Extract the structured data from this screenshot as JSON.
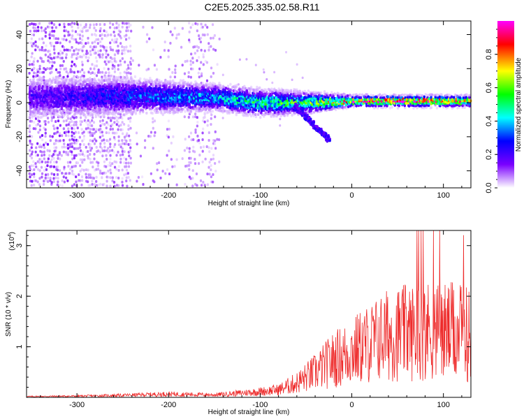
{
  "title": "C2E5.2025.335.02.58.R11",
  "chart_data": [
    {
      "type": "heatmap",
      "xlabel": "Height of straight line (km)",
      "ylabel": "Frequency (Hz)",
      "xlim": [
        -355,
        130
      ],
      "ylim": [
        -50,
        48
      ],
      "xticks": [
        -300,
        -200,
        -100,
        0,
        100
      ],
      "yticks": [
        -40,
        -20,
        0,
        20,
        40
      ],
      "colorbar": {
        "label": "Normalized spectral amplitude",
        "range": [
          0,
          1
        ],
        "ticks": [
          "0.0",
          "0.2",
          "0.4",
          "0.6",
          "0.8"
        ],
        "tick_values": [
          0,
          0.2,
          0.4,
          0.6,
          0.8
        ],
        "colors": [
          "#ffffff",
          "#7a00ff",
          "#0000ff",
          "#00ffff",
          "#00ff00",
          "#ffff00",
          "#ff0000",
          "#ff00ff"
        ]
      },
      "ridge": {
        "description_values": [
          {
            "x": -330,
            "freq_center": 3,
            "freq_halfwidth": 8,
            "amplitude": 0.2
          },
          {
            "x": -250,
            "freq_center": 4,
            "freq_halfwidth": 7,
            "amplitude": 0.3
          },
          {
            "x": -150,
            "freq_center": 3,
            "freq_halfwidth": 5,
            "amplitude": 0.4
          },
          {
            "x": -100,
            "freq_center": 0,
            "freq_halfwidth": 5,
            "amplitude": 0.5
          },
          {
            "x": -50,
            "freq_center": 0,
            "freq_halfwidth": 4,
            "amplitude": 0.55
          },
          {
            "x": 0,
            "freq_center": 1,
            "freq_halfwidth": 2,
            "amplitude": 0.8
          },
          {
            "x": 50,
            "freq_center": 1,
            "freq_halfwidth": 2,
            "amplitude": 0.9
          },
          {
            "x": 125,
            "freq_center": 1,
            "freq_halfwidth": 2,
            "amplitude": 0.85
          }
        ]
      }
    },
    {
      "type": "line",
      "xlabel": "Height of straight line (km)",
      "ylabel": "SNR (10 * v/v)",
      "y_multiplier": "(x10",
      "y_multiplier_exp": "4",
      "y_multiplier_close": ")",
      "xlim": [
        -355,
        130
      ],
      "ylim": [
        0,
        3.3
      ],
      "xticks": [
        -300,
        -200,
        -100,
        0,
        100
      ],
      "yticks": [
        1,
        2,
        3
      ],
      "color": "#ee2a2a",
      "envelope": [
        {
          "x": -355,
          "y": 0.02
        },
        {
          "x": -300,
          "y": 0.03
        },
        {
          "x": -250,
          "y": 0.05
        },
        {
          "x": -200,
          "y": 0.08
        },
        {
          "x": -150,
          "y": 0.06
        },
        {
          "x": -110,
          "y": 0.12
        },
        {
          "x": -80,
          "y": 0.18
        },
        {
          "x": -60,
          "y": 0.35
        },
        {
          "x": -40,
          "y": 0.6
        },
        {
          "x": -20,
          "y": 0.9
        },
        {
          "x": 0,
          "y": 1.1
        },
        {
          "x": 20,
          "y": 1.3
        },
        {
          "x": 40,
          "y": 1.5
        },
        {
          "x": 60,
          "y": 1.55
        },
        {
          "x": 80,
          "y": 1.6
        },
        {
          "x": 100,
          "y": 1.6
        },
        {
          "x": 130,
          "y": 1.5
        }
      ]
    }
  ]
}
